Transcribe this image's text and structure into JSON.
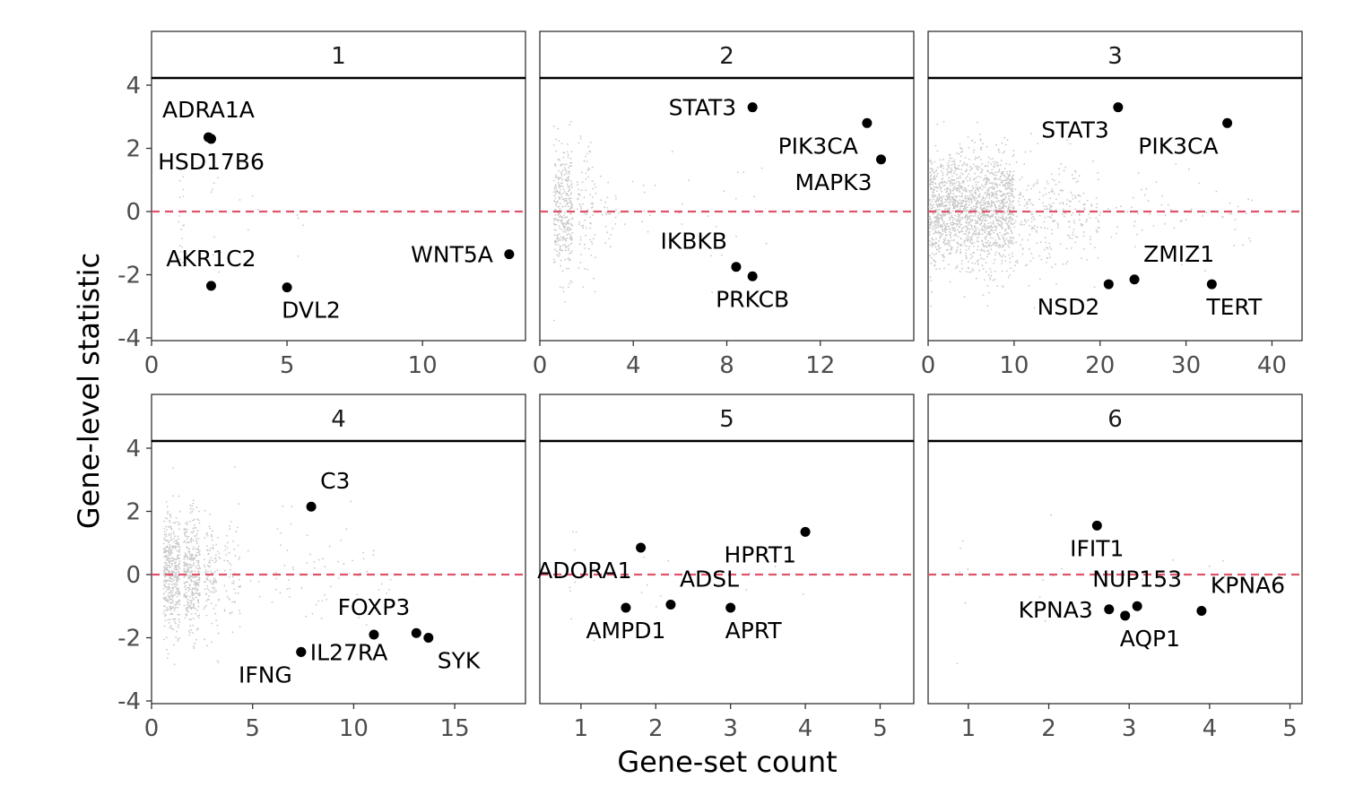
{
  "chart_data": {
    "type": "scatter",
    "facet_layout": "2 rows x 3 columns",
    "xlabel": "Gene-set count",
    "ylabel": "Gene-level statistic",
    "ylim": [
      -4,
      5.3
    ],
    "y_ticks": [
      4,
      2,
      0,
      -2,
      -4
    ],
    "y_tick_labels": [
      "4",
      "2",
      "0",
      "-2",
      "-4"
    ],
    "reference_line": {
      "y": 0,
      "style": "dashed",
      "color": "#DF536B"
    },
    "colors": {
      "highlight": "#000000",
      "background_points": "#C8C8C8",
      "refline": "#DF536B"
    },
    "panels": [
      {
        "id": "1",
        "xlim": [
          0,
          13.8
        ],
        "x_ticks": [
          0,
          5,
          10
        ],
        "x_tick_labels": [
          "0",
          "5",
          "10"
        ],
        "background_cloud": [
          {
            "x": [
              1,
              1.2
            ],
            "sd": 1.2,
            "n": 22
          },
          {
            "x": [
              2,
              2.5
            ],
            "sd": 1.2,
            "n": 8
          },
          {
            "x": [
              3,
              6
            ],
            "sd": 1.3,
            "n": 8
          }
        ],
        "highlighted": [
          {
            "gene": "ADRA1A",
            "x": 2.1,
            "y": 2.35,
            "label_pos": "above"
          },
          {
            "gene": "HSD17B6",
            "x": 2.2,
            "y": 2.3,
            "label_pos": "below"
          },
          {
            "gene": "AKR1C2",
            "x": 2.2,
            "y": -2.35,
            "label_pos": "above"
          },
          {
            "gene": "DVL2",
            "x": 5.0,
            "y": -2.4,
            "label_pos": "below-right"
          },
          {
            "gene": "WNT5A",
            "x": 13.2,
            "y": -1.35,
            "label_pos": "left"
          }
        ]
      },
      {
        "id": "2",
        "xlim": [
          0,
          16
        ],
        "x_ticks": [
          0,
          4,
          8,
          12
        ],
        "x_tick_labels": [
          "0",
          "4",
          "8",
          "12"
        ],
        "background_cloud": [
          {
            "x": [
              0.6,
              1.4
            ],
            "sd": 1.1,
            "n": 340
          },
          {
            "x": [
              1.6,
              2.4
            ],
            "sd": 1.1,
            "n": 90
          },
          {
            "x": [
              2.6,
              3.4
            ],
            "sd": 1.0,
            "n": 25
          },
          {
            "x": [
              3.6,
              10
            ],
            "sd": 1.0,
            "n": 30
          }
        ],
        "highlighted": [
          {
            "gene": "STAT3",
            "x": 9.1,
            "y": 3.3,
            "label_pos": "left"
          },
          {
            "gene": "PIK3CA",
            "x": 14.0,
            "y": 2.8,
            "label_pos": "below-left"
          },
          {
            "gene": "MAPK3",
            "x": 14.6,
            "y": 1.65,
            "label_pos": "below-left"
          },
          {
            "gene": "IKBKB",
            "x": 8.4,
            "y": -1.75,
            "label_pos": "above-left"
          },
          {
            "gene": "PRKCB",
            "x": 9.1,
            "y": -2.05,
            "label_pos": "below"
          }
        ]
      },
      {
        "id": "3",
        "xlim": [
          0,
          43.5
        ],
        "x_ticks": [
          0,
          10,
          20,
          30,
          40
        ],
        "x_tick_labels": [
          "0",
          "10",
          "20",
          "30",
          "40"
        ],
        "background_cloud": [
          {
            "x": [
              0,
              10
            ],
            "sd": 1.0,
            "n": 1700
          },
          {
            "x": [
              10,
              20
            ],
            "sd": 1.0,
            "n": 280
          },
          {
            "x": [
              20,
              38
            ],
            "sd": 0.9,
            "n": 60
          }
        ],
        "highlighted": [
          {
            "gene": "STAT3",
            "x": 22.1,
            "y": 3.3,
            "label_pos": "below-left"
          },
          {
            "gene": "PIK3CA",
            "x": 34.8,
            "y": 2.8,
            "label_pos": "below-left"
          },
          {
            "gene": "ZMIZ1",
            "x": 24.0,
            "y": -2.15,
            "label_pos": "above-right"
          },
          {
            "gene": "NSD2",
            "x": 21.0,
            "y": -2.3,
            "label_pos": "below-left"
          },
          {
            "gene": "TERT",
            "x": 33.0,
            "y": -2.3,
            "label_pos": "below-right"
          }
        ]
      },
      {
        "id": "4",
        "xlim": [
          0,
          18.5
        ],
        "x_ticks": [
          0,
          5,
          10,
          15
        ],
        "x_tick_labels": [
          "0",
          "5",
          "10",
          "15"
        ],
        "background_cloud": [
          {
            "x": [
              0.6,
              1.4
            ],
            "sd": 1.05,
            "n": 420
          },
          {
            "x": [
              1.6,
              2.4
            ],
            "sd": 1.05,
            "n": 330
          },
          {
            "x": [
              2.6,
              3.4
            ],
            "sd": 1.0,
            "n": 110
          },
          {
            "x": [
              3.6,
              4.4
            ],
            "sd": 1.0,
            "n": 60
          },
          {
            "x": [
              4.6,
              12
            ],
            "sd": 1.0,
            "n": 70
          }
        ],
        "highlighted": [
          {
            "gene": "C3",
            "x": 7.9,
            "y": 2.15,
            "label_pos": "above-right"
          },
          {
            "gene": "FOXP3",
            "x": 11.0,
            "y": -1.9,
            "label_pos": "above"
          },
          {
            "gene": "IL27RA",
            "x": 7.4,
            "y": -2.45,
            "label_pos": "right"
          },
          {
            "gene": "IFNG",
            "x": 7.4,
            "y": -2.45,
            "label_pos": "below-left"
          },
          {
            "gene": "SYK",
            "x": 13.1,
            "y": -1.85,
            "label_pos": "none"
          },
          {
            "gene": "",
            "x": 13.7,
            "y": -2.0,
            "label_pos": "none"
          }
        ],
        "extra_labels": [
          {
            "text": "SYK",
            "x": 13.7,
            "y": -2.0,
            "label_pos": "below-right"
          }
        ]
      },
      {
        "id": "5",
        "xlim": [
          0.45,
          5.45
        ],
        "x_ticks": [
          1,
          2,
          3,
          4,
          5
        ],
        "x_tick_labels": [
          "1",
          "2",
          "3",
          "4",
          "5"
        ],
        "background_cloud": [
          {
            "x": [
              0.8,
              1.2
            ],
            "sd": 1.0,
            "n": 9
          },
          {
            "x": [
              1.8,
              2.2
            ],
            "sd": 1.0,
            "n": 6
          },
          {
            "x": [
              2.8,
              4.2
            ],
            "sd": 1.0,
            "n": 4
          }
        ],
        "highlighted": [
          {
            "gene": "ADORA1",
            "x": 1.8,
            "y": 0.85,
            "label_pos": "below-left"
          },
          {
            "gene": "HPRT1",
            "x": 4.0,
            "y": 1.35,
            "label_pos": "below-left"
          },
          {
            "gene": "ADSL",
            "x": 2.2,
            "y": -0.95,
            "label_pos": "above-right"
          },
          {
            "gene": "AMPD1",
            "x": 1.6,
            "y": -1.05,
            "label_pos": "below"
          },
          {
            "gene": "APRT",
            "x": 3.0,
            "y": -1.05,
            "label_pos": "below-right"
          }
        ]
      },
      {
        "id": "6",
        "xlim": [
          0.5,
          5.15
        ],
        "x_ticks": [
          1,
          2,
          3,
          4,
          5
        ],
        "x_tick_labels": [
          "1",
          "2",
          "3",
          "4",
          "5"
        ],
        "background_cloud": [
          {
            "x": [
              0.8,
              1.2
            ],
            "sd": 1.0,
            "n": 6
          },
          {
            "x": [
              1.8,
              2.2
            ],
            "sd": 1.0,
            "n": 6
          },
          {
            "x": [
              2.8,
              4.2
            ],
            "sd": 1.0,
            "n": 6
          }
        ],
        "highlighted": [
          {
            "gene": "IFIT1",
            "x": 2.6,
            "y": 1.55,
            "label_pos": "below"
          },
          {
            "gene": "NUP153",
            "x": 3.1,
            "y": -1.0,
            "label_pos": "above"
          },
          {
            "gene": "KPNA6",
            "x": 3.9,
            "y": -1.15,
            "label_pos": "above-right"
          },
          {
            "gene": "KPNA3",
            "x": 2.75,
            "y": -1.1,
            "label_pos": "left"
          },
          {
            "gene": "AQP1",
            "x": 2.95,
            "y": -1.3,
            "label_pos": "below-right"
          }
        ]
      }
    ]
  }
}
